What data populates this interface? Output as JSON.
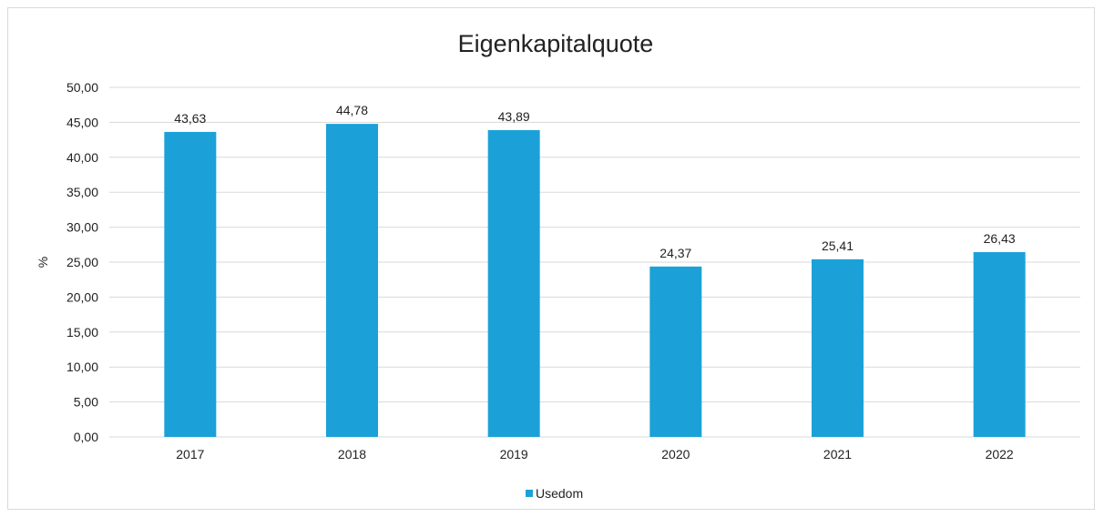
{
  "chart_data": {
    "type": "bar",
    "title": "Eigenkapitalquote",
    "ylabel": "%",
    "xlabel": "",
    "categories": [
      "2017",
      "2018",
      "2019",
      "2020",
      "2021",
      "2022"
    ],
    "series": [
      {
        "name": "Usedom",
        "values": [
          43.63,
          44.78,
          43.89,
          24.37,
          25.41,
          26.43
        ],
        "data_labels": [
          "43,63",
          "44,78",
          "43,89",
          "24,37",
          "25,41",
          "26,43"
        ]
      }
    ],
    "ylim": [
      0,
      50
    ],
    "yticks": [
      0,
      5,
      10,
      15,
      20,
      25,
      30,
      35,
      40,
      45,
      50
    ],
    "ytick_labels": [
      "0,00",
      "5,00",
      "10,00",
      "15,00",
      "20,00",
      "25,00",
      "30,00",
      "35,00",
      "40,00",
      "45,00",
      "50,00"
    ],
    "grid": true,
    "legend": "bottom-center",
    "colors": {
      "bar": "#1ba1d8",
      "grid": "#d9d9d9",
      "text": "#222222"
    }
  }
}
